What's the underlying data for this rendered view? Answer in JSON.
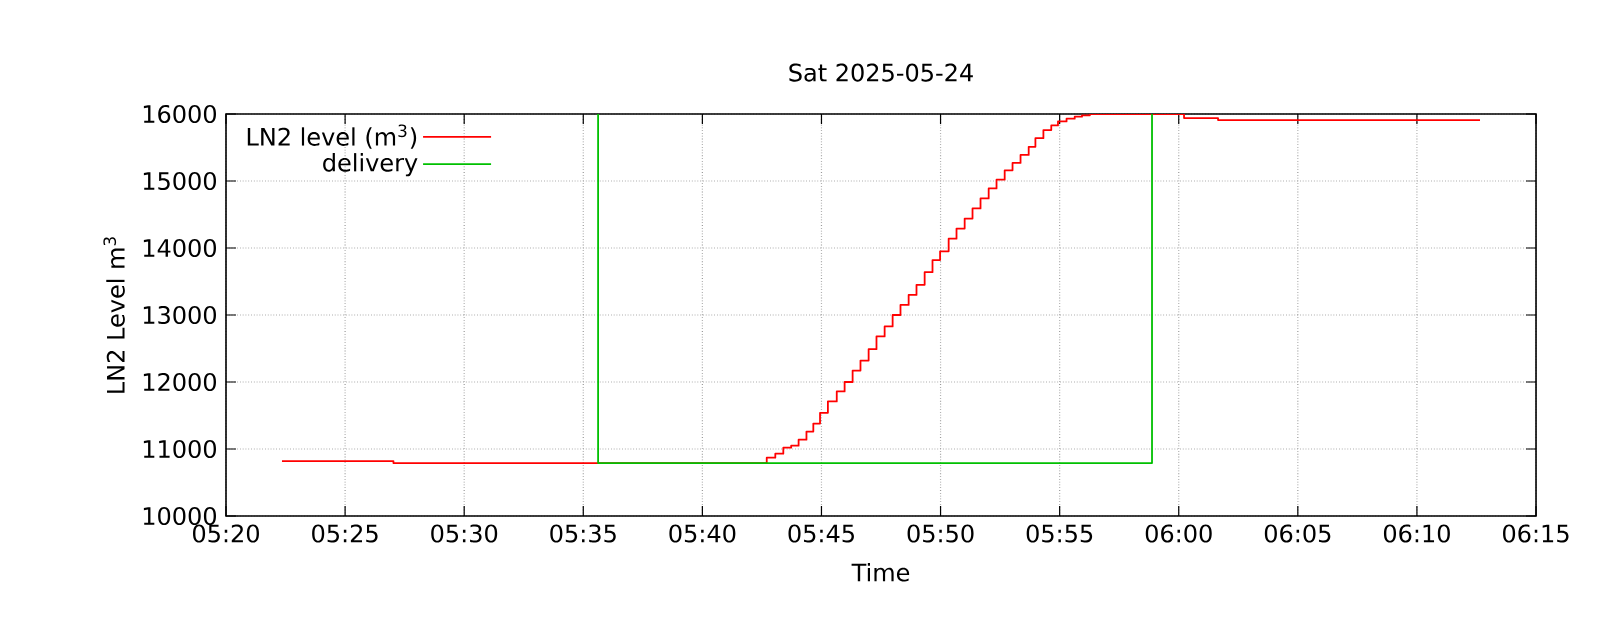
{
  "chart_data": {
    "type": "step",
    "title": "Sat 2025-05-24",
    "xlabel": "Time",
    "ylabel": "LN2 Level m$^{3}$",
    "xlim": [
      5.33333,
      6.25
    ],
    "xticks": [
      {
        "value": 5.33333,
        "label": "05:20"
      },
      {
        "value": 5.41667,
        "label": "05:25"
      },
      {
        "value": 5.5,
        "label": "05:30"
      },
      {
        "value": 5.58333,
        "label": "05:35"
      },
      {
        "value": 5.66667,
        "label": "05:40"
      },
      {
        "value": 5.75,
        "label": "05:45"
      },
      {
        "value": 5.83333,
        "label": "05:50"
      },
      {
        "value": 5.91667,
        "label": "05:55"
      },
      {
        "value": 6.0,
        "label": "06:00"
      },
      {
        "value": 6.08333,
        "label": "06:05"
      },
      {
        "value": 6.16667,
        "label": "06:10"
      },
      {
        "value": 6.25,
        "label": "06:15"
      }
    ],
    "ylim": [
      10000,
      16000
    ],
    "yticks": [
      10000,
      11000,
      12000,
      13000,
      14000,
      15000,
      16000
    ],
    "grid": true,
    "legend": "top left",
    "series": [
      {
        "name": "LN2 level (m$^{3}$)",
        "color": "#ff0000",
        "x": [
          5.3725,
          5.4505,
          5.7117,
          5.7177,
          5.7233,
          5.7288,
          5.734,
          5.7395,
          5.7443,
          5.749,
          5.7545,
          5.7607,
          5.7662,
          5.7718,
          5.7773,
          5.783,
          5.7885,
          5.7942,
          5.7998,
          5.8053,
          5.811,
          5.8165,
          5.8222,
          5.8277,
          5.833,
          5.839,
          5.8445,
          5.8502,
          5.8557,
          5.8613,
          5.867,
          5.8725,
          5.8782,
          5.8837,
          5.8893,
          5.895,
          5.8997,
          5.9053,
          5.9108,
          5.9155,
          5.9215,
          5.9272,
          5.9323,
          5.9378,
          6.0037,
          6.0275,
          6.2108
        ],
        "values": [
          10820,
          10790,
          10870,
          10930,
          11020,
          11050,
          11140,
          11260,
          11380,
          11540,
          11710,
          11860,
          12000,
          12170,
          12320,
          12490,
          12680,
          12830,
          13000,
          13150,
          13300,
          13450,
          13640,
          13820,
          13950,
          14140,
          14290,
          14440,
          14590,
          14740,
          14890,
          15020,
          15160,
          15270,
          15390,
          15510,
          15640,
          15760,
          15830,
          15890,
          15930,
          15960,
          15980,
          16000,
          15940,
          15910,
          15910
        ]
      },
      {
        "name": "delivery",
        "color": "#00c000",
        "x": [
          5.5937,
          5.5937,
          5.9813,
          5.9813
        ],
        "values": [
          16000,
          10790,
          10790,
          16000
        ]
      }
    ]
  }
}
